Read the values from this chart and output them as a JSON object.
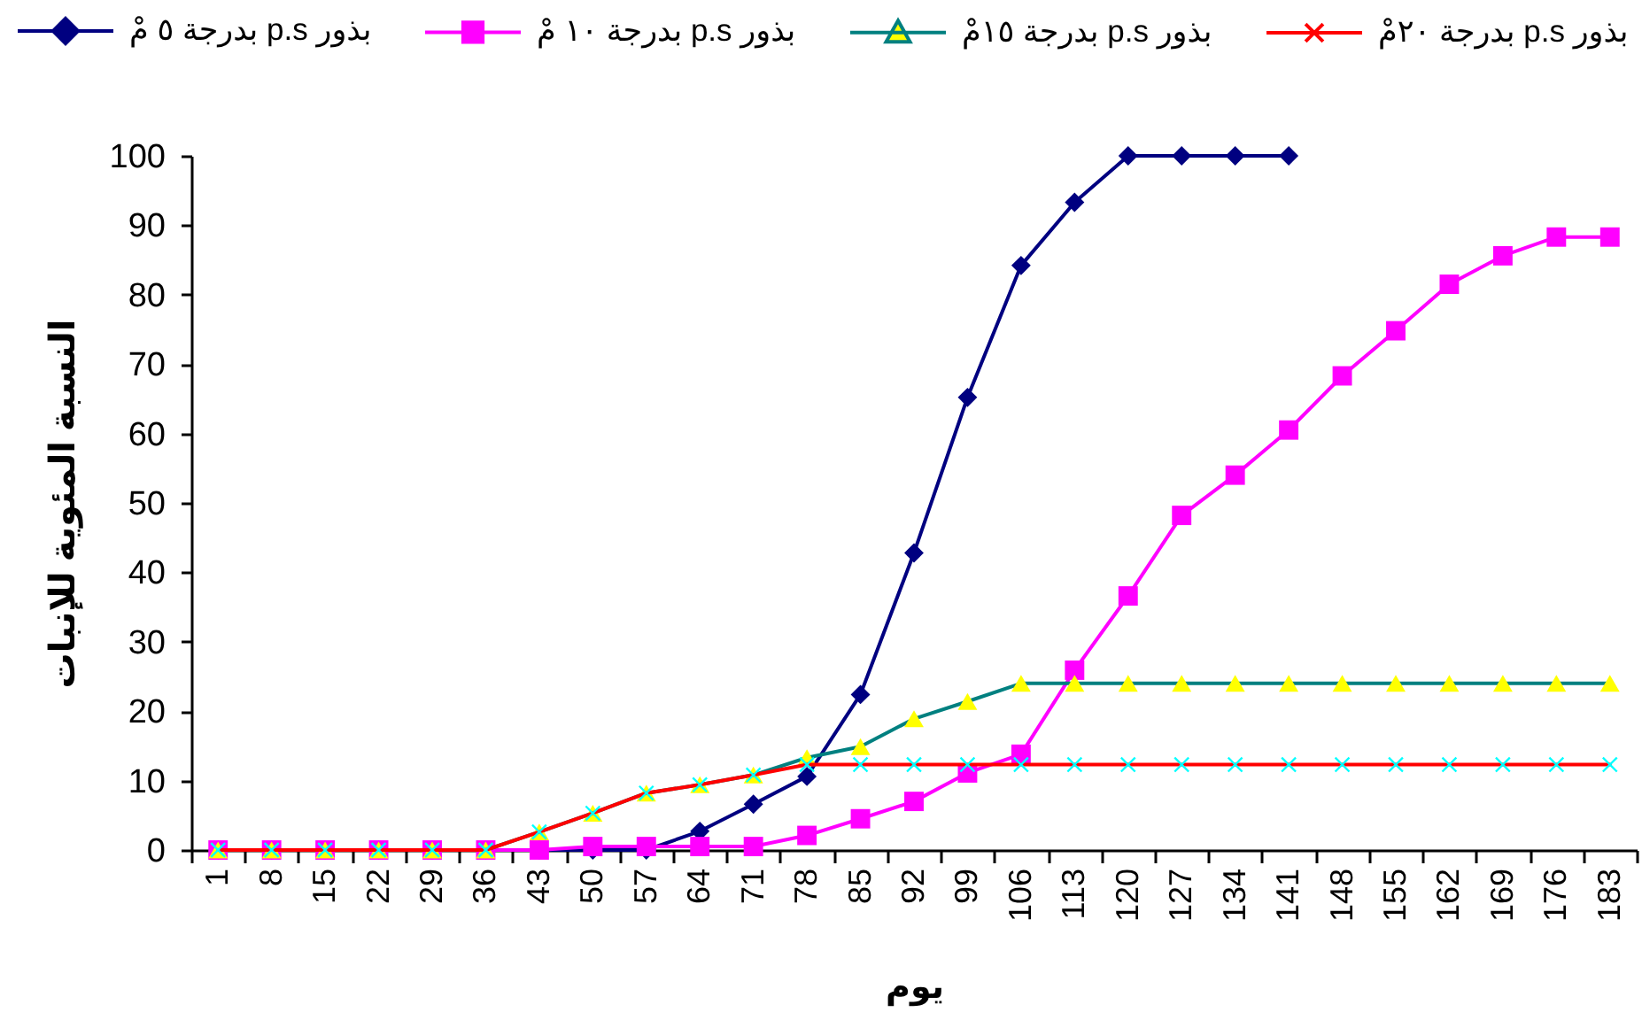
{
  "chart_data": {
    "type": "line",
    "xlabel": "يوم",
    "ylabel": "النسبة المئوية للإنبات",
    "categories": [
      "1",
      "8",
      "15",
      "22",
      "29",
      "36",
      "43",
      "50",
      "57",
      "64",
      "71",
      "78",
      "85",
      "92",
      "99",
      "106",
      "113",
      "120",
      "127",
      "134",
      "141",
      "148",
      "155",
      "162",
      "169",
      "176",
      "183"
    ],
    "series": [
      {
        "name": "بذور p.s بدرجة ٥ مْ",
        "color": "#000080",
        "marker": "diamond",
        "values": [
          0,
          0,
          0,
          0,
          0,
          0,
          0,
          0,
          0,
          2.7,
          6.6,
          10.6,
          22.4,
          42.8,
          65.2,
          84.2,
          93.3,
          100,
          100,
          100,
          100,
          null,
          null,
          null,
          null,
          null,
          null
        ]
      },
      {
        "name": "بذور p.s بدرجة ١٠ مْ",
        "color": "#ff00ff",
        "marker": "square",
        "values": [
          0,
          0,
          0,
          0,
          0,
          0,
          0,
          0.5,
          0.5,
          0.5,
          0.5,
          2.1,
          4.5,
          7.0,
          11.1,
          13.8,
          25.9,
          36.6,
          48.2,
          54.0,
          60.5,
          68.3,
          74.8,
          81.5,
          85.6,
          88.3,
          88.3
        ]
      },
      {
        "name": "بذور p.s بدرجة ١٥مْ",
        "color": "#008080",
        "marker": "triangle",
        "colors": [
          "#ffff00",
          "#ffff00",
          "#ffff00",
          "#ffff00",
          "#ffff00",
          "#ffff00",
          "#ffff00",
          "#ffff00",
          "#ffff00",
          "#ffff00",
          "#ffff00",
          "#ffff00",
          "#ffff00",
          "#ffff00",
          "#ffff00",
          "#ffff00",
          "#ffff00",
          "#ffff00",
          "#ffff00",
          "#ffff00",
          "#ffff00",
          "#ffff00",
          "#ffff00",
          "#ffff00",
          "#ffff00",
          "#ffff00",
          "#ffff00"
        ],
        "values": [
          0,
          0,
          0,
          0,
          0,
          0,
          2.6,
          5.3,
          8.2,
          9.4,
          10.8,
          13.3,
          14.9,
          18.9,
          21.4,
          24.0,
          24.0,
          24.0,
          24.0,
          24.0,
          24.0,
          24.0,
          24.0,
          24.0,
          24.0,
          24.0,
          24.0
        ]
      },
      {
        "name": "بذور p.s بدرجة ٢٠مْ",
        "color": "#ff0000",
        "marker": "cross",
        "colors": [
          "#00ffff",
          "#00ffff",
          "#00ffff",
          "#00ffff",
          "#00ffff",
          "#00ffff",
          "#00ffff",
          "#00ffff",
          "#00ffff",
          "#00ffff",
          "#00ffff",
          "#00ffff",
          "#00ffff",
          "#00ffff",
          "#00ffff",
          "#00ffff",
          "#00ffff",
          "#00ffff",
          "#00ffff",
          "#00ffff",
          "#00ffff",
          "#00ffff",
          "#00ffff",
          "#00ffff",
          "#00ffff",
          "#00ffff",
          "#00ffff"
        ],
        "values": [
          0,
          0,
          0,
          0,
          0,
          0,
          2.6,
          5.3,
          8.2,
          9.4,
          10.8,
          12.3,
          12.3,
          12.3,
          12.3,
          12.3,
          12.3,
          12.3,
          12.3,
          12.3,
          12.3,
          12.3,
          12.3,
          12.3,
          12.3,
          12.3,
          12.3
        ]
      }
    ],
    "ylim": [
      0,
      100
    ],
    "yticks": [
      0,
      10,
      20,
      30,
      40,
      50,
      60,
      70,
      80,
      90,
      100
    ],
    "legend": "top"
  }
}
